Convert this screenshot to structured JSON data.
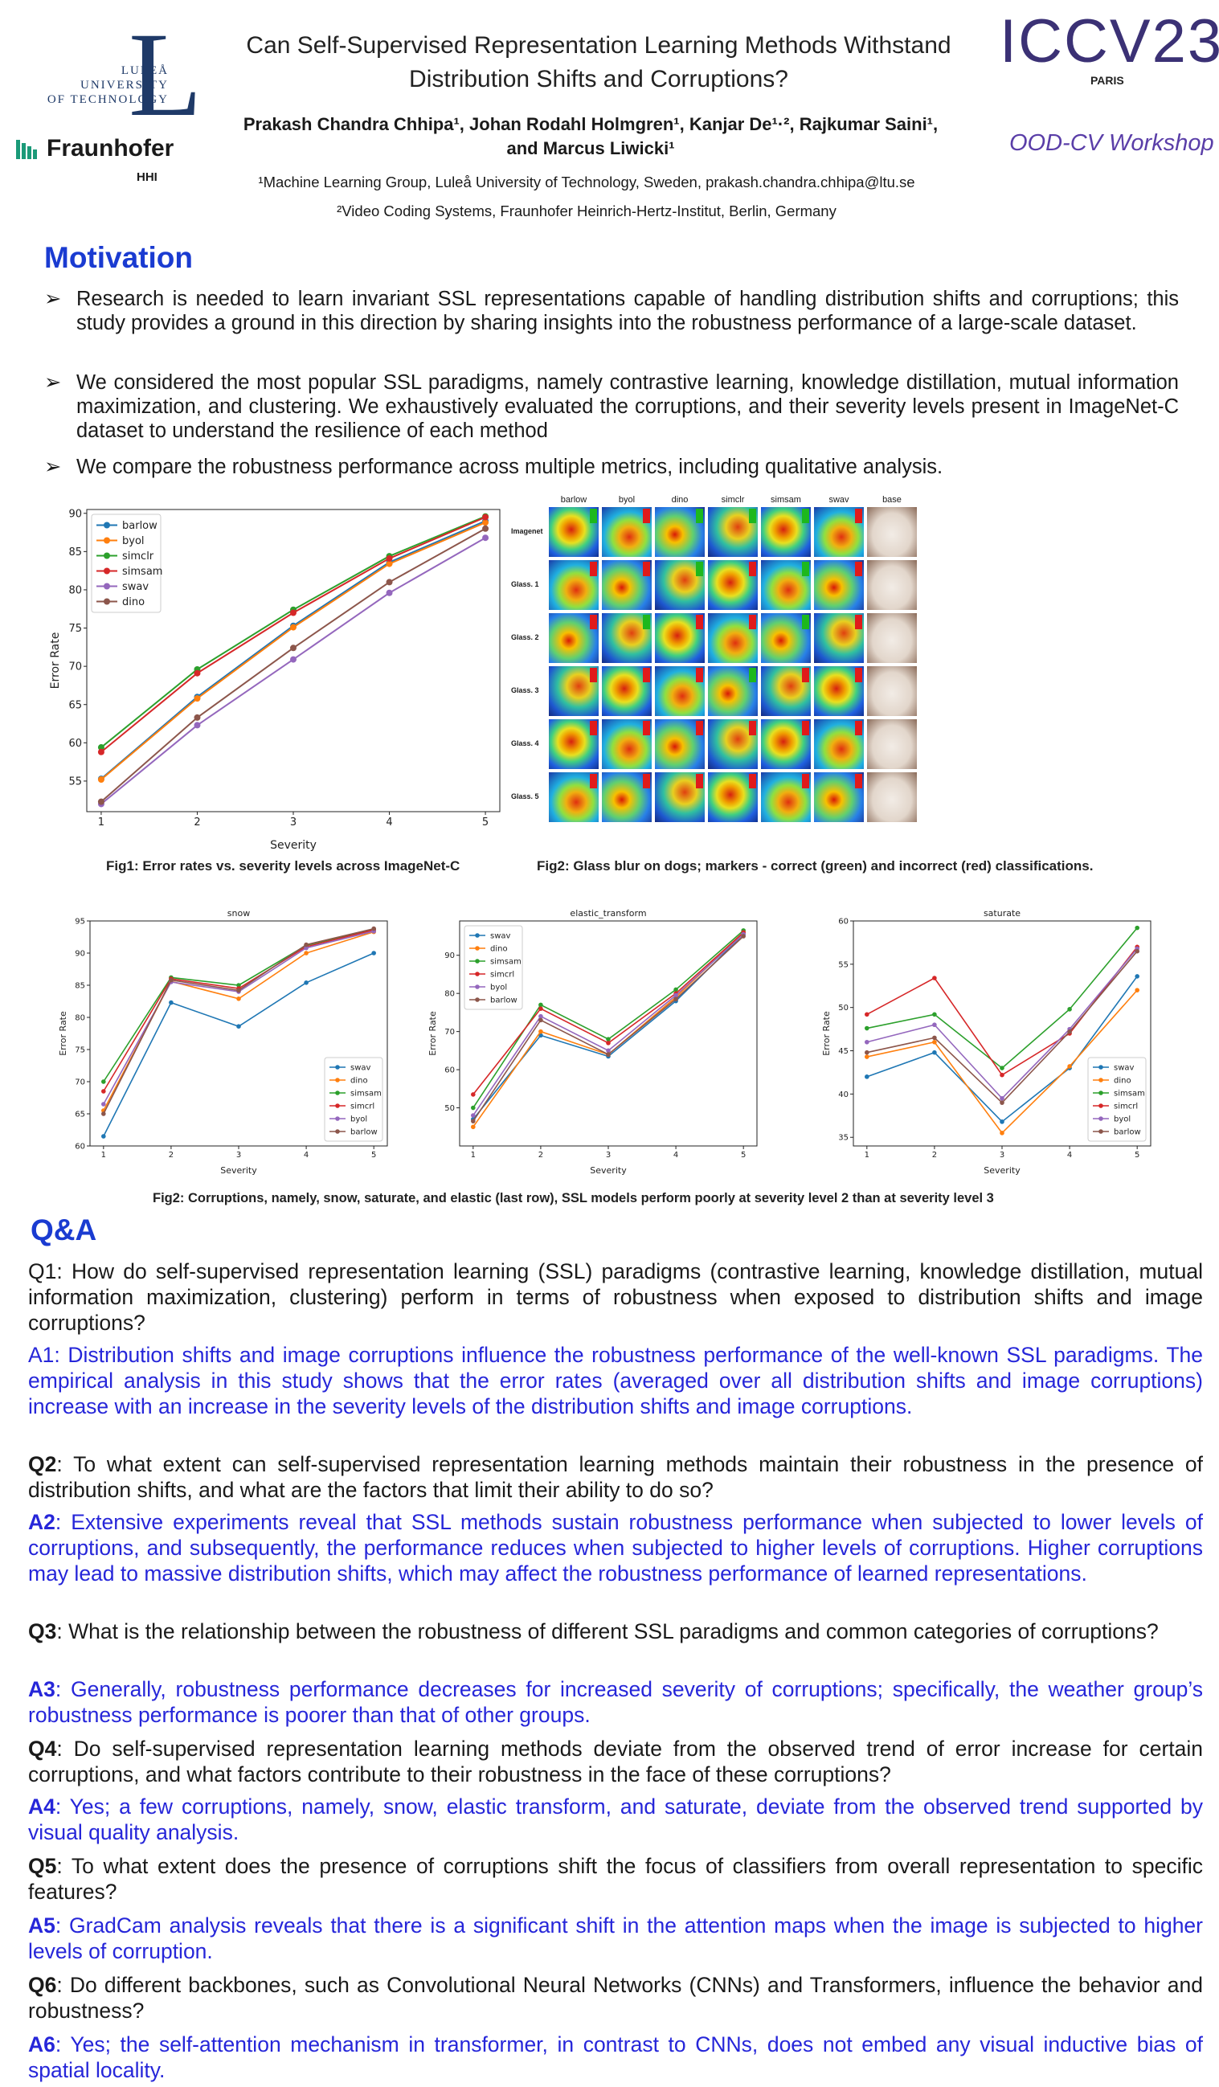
{
  "header": {
    "lulea_line1": "LULEÅ",
    "lulea_line2": "UNIVERSITY",
    "lulea_line3": "OF TECHNOLOGY",
    "lulea_mark": "L",
    "fraunhofer": "Fraunhofer",
    "hhi": "HHI",
    "title_line1": "Can Self-Supervised Representation Learning Methods Withstand",
    "title_line2": "Distribution Shifts and Corruptions?",
    "conference": "ICCV23",
    "conference_city": "PARIS",
    "workshop": "OOD-CV Workshop",
    "authors_line1": "Prakash Chandra Chhipa¹, Johan Rodahl Holmgren¹, Kanjar De¹·², Rajkumar Saini¹,",
    "authors_line2": "and Marcus Liwicki¹",
    "affiliation1": "¹Machine Learning Group, Luleå University of Technology, Sweden, prakash.chandra.chhipa@ltu.se",
    "affiliation2": "²Video Coding Systems, Fraunhofer Heinrich-Hertz-Institut, Berlin, Germany"
  },
  "motivation": {
    "title": "Motivation",
    "arrow": "➢",
    "bullets": [
      "Research is needed to learn invariant SSL representations capable of handling distribution shifts and corruptions; this study provides a ground in this direction by sharing insights into the robustness performance of a large-scale dataset.",
      "We considered the most popular SSL paradigms, namely contrastive learning, knowledge distillation, mutual information maximization, and clustering. We exhaustively evaluated the corruptions, and their severity levels present in ImageNet-C dataset to understand the resilience of each method",
      "We compare the robustness performance across multiple metrics, including qualitative analysis."
    ]
  },
  "colors": {
    "accent_blue": "#1a3bd1",
    "answer_blue": "#2626d9",
    "c_blue": "#1f77b4",
    "c_orange": "#ff7f0e",
    "c_green": "#2ca02c",
    "c_red": "#d62728",
    "c_purple": "#9467bd",
    "c_brown": "#8c564b"
  },
  "chart_data": [
    {
      "type": "line",
      "title": "",
      "xlabel": "Severity",
      "ylabel": "Error Rate",
      "x": [
        1,
        2,
        3,
        4,
        5
      ],
      "xlim": [
        0.85,
        5.15
      ],
      "ylim": [
        51,
        90.5
      ],
      "yticks": [
        55,
        60,
        65,
        70,
        75,
        80,
        85,
        90
      ],
      "legend": "top-left",
      "series": [
        {
          "name": "barlow",
          "color": "#1f77b4",
          "values": [
            55.3,
            66.0,
            75.3,
            83.6,
            89.0
          ]
        },
        {
          "name": "byol",
          "color": "#ff7f0e",
          "values": [
            55.2,
            65.8,
            75.1,
            83.4,
            88.8
          ]
        },
        {
          "name": "simclr",
          "color": "#2ca02c",
          "values": [
            59.4,
            69.6,
            77.4,
            84.4,
            89.6
          ]
        },
        {
          "name": "simsam",
          "color": "#d62728",
          "values": [
            58.8,
            69.1,
            77.0,
            84.1,
            89.5
          ]
        },
        {
          "name": "swav",
          "color": "#9467bd",
          "values": [
            52.0,
            62.3,
            70.9,
            79.6,
            86.8
          ]
        },
        {
          "name": "dino",
          "color": "#8c564b",
          "values": [
            52.3,
            63.3,
            72.4,
            81.0,
            88.0
          ]
        }
      ]
    },
    {
      "type": "line",
      "title": "snow",
      "xlabel": "Severity",
      "ylabel": "Error Rate",
      "x": [
        1,
        2,
        3,
        4,
        5
      ],
      "xlim": [
        0.8,
        5.2
      ],
      "ylim": [
        60,
        95
      ],
      "yticks": [
        60,
        65,
        70,
        75,
        80,
        85,
        90,
        95
      ],
      "legend": "bottom-right",
      "series": [
        {
          "name": "swav",
          "color": "#1f77b4",
          "values": [
            61.5,
            82.3,
            78.6,
            85.4,
            90.0
          ]
        },
        {
          "name": "dino",
          "color": "#ff7f0e",
          "values": [
            65.5,
            85.6,
            82.9,
            90.0,
            93.3
          ]
        },
        {
          "name": "simsam",
          "color": "#2ca02c",
          "values": [
            70.0,
            86.2,
            85.0,
            91.2,
            93.7
          ]
        },
        {
          "name": "simcrl",
          "color": "#d62728",
          "values": [
            68.5,
            86.0,
            84.5,
            91.0,
            93.6
          ]
        },
        {
          "name": "byol",
          "color": "#9467bd",
          "values": [
            66.5,
            85.5,
            84.0,
            90.8,
            93.4
          ]
        },
        {
          "name": "barlow",
          "color": "#8c564b",
          "values": [
            65.0,
            85.8,
            84.2,
            91.3,
            93.8
          ]
        }
      ]
    },
    {
      "type": "line",
      "title": "elastic_transform",
      "xlabel": "Severity",
      "ylabel": "Error Rate",
      "x": [
        1,
        2,
        3,
        4,
        5
      ],
      "xlim": [
        0.8,
        5.2
      ],
      "ylim": [
        40,
        99
      ],
      "yticks": [
        50,
        60,
        70,
        80,
        90
      ],
      "legend": "top-left",
      "series": [
        {
          "name": "swav",
          "color": "#1f77b4",
          "values": [
            47.0,
            69.0,
            63.5,
            78.0,
            95.5
          ]
        },
        {
          "name": "dino",
          "color": "#ff7f0e",
          "values": [
            45.0,
            70.0,
            64.0,
            79.0,
            96.0
          ]
        },
        {
          "name": "simsam",
          "color": "#2ca02c",
          "values": [
            50.0,
            77.0,
            68.0,
            81.0,
            96.5
          ]
        },
        {
          "name": "simcrl",
          "color": "#d62728",
          "values": [
            53.5,
            76.0,
            67.0,
            80.0,
            96.0
          ]
        },
        {
          "name": "byol",
          "color": "#9467bd",
          "values": [
            48.0,
            74.0,
            65.0,
            79.5,
            95.5
          ]
        },
        {
          "name": "barlow",
          "color": "#8c564b",
          "values": [
            46.5,
            73.0,
            64.0,
            78.5,
            95.0
          ]
        }
      ]
    },
    {
      "type": "line",
      "title": "saturate",
      "xlabel": "Severity",
      "ylabel": "Error Rate",
      "x": [
        1,
        2,
        3,
        4,
        5
      ],
      "xlim": [
        0.8,
        5.2
      ],
      "ylim": [
        34,
        60
      ],
      "yticks": [
        35,
        40,
        45,
        50,
        55,
        60
      ],
      "legend": "bottom-right",
      "series": [
        {
          "name": "swav",
          "color": "#1f77b4",
          "values": [
            42.0,
            44.8,
            36.8,
            43.0,
            53.6
          ]
        },
        {
          "name": "dino",
          "color": "#ff7f0e",
          "values": [
            44.3,
            46.0,
            35.5,
            43.2,
            52.0
          ]
        },
        {
          "name": "simsam",
          "color": "#2ca02c",
          "values": [
            47.6,
            49.2,
            43.0,
            49.8,
            59.2
          ]
        },
        {
          "name": "simcrl",
          "color": "#d62728",
          "values": [
            49.2,
            53.4,
            42.2,
            47.0,
            57.0
          ]
        },
        {
          "name": "byol",
          "color": "#9467bd",
          "values": [
            46.0,
            48.0,
            39.5,
            47.5,
            56.8
          ]
        },
        {
          "name": "barlow",
          "color": "#8c564b",
          "values": [
            44.8,
            46.5,
            39.0,
            47.2,
            56.5
          ]
        }
      ]
    }
  ],
  "fig1_caption": "Fig1: Error rates vs. severity levels across ImageNet-C",
  "fig2_caption": "Fig2: Glass blur on dogs; markers - correct (green) and incorrect (red) classifications.",
  "fig3_caption": "Fig2: Corruptions, namely, snow, saturate, and elastic (last row), SSL models perform poorly at severity level 2 than at severity level 3",
  "attention_grid": {
    "columns": [
      "barlow",
      "byol",
      "dino",
      "simclr",
      "simsam",
      "swav",
      "base"
    ],
    "rows": [
      "Imagenet",
      "Glass. 1",
      "Glass. 2",
      "Glass. 3",
      "Glass. 4",
      "Glass. 5"
    ],
    "markers": [
      [
        "green",
        "red",
        "green",
        "green",
        "green",
        "red"
      ],
      [
        "red",
        "red",
        "green",
        "red",
        "green",
        "red"
      ],
      [
        "red",
        "green",
        "red",
        "red",
        "green",
        "red"
      ],
      [
        "red",
        "red",
        "red",
        "green",
        "red",
        "red"
      ],
      [
        "red",
        "red",
        "red",
        "red",
        "red",
        "red"
      ],
      [
        "red",
        "red",
        "red",
        "red",
        "red",
        "red"
      ]
    ]
  },
  "qa": {
    "title": "Q&A",
    "items": [
      {
        "q_label": "Q1",
        "q": ": How do self-supervised representation learning (SSL) paradigms (contrastive learning, knowledge distillation, mutual information maximization, clustering) perform in terms of robustness when exposed to distribution shifts and image corruptions?",
        "a_label": "A1",
        "a": ": Distribution shifts and image corruptions influence the robustness performance of the well-known SSL paradigms. The empirical analysis in this study shows that the error rates (averaged over all distribution shifts and image corruptions) increase with an increase in the severity levels of the distribution shifts and image corruptions."
      },
      {
        "q_label": "Q2",
        "q": ": To what extent can self-supervised representation learning methods maintain their robustness in the presence of distribution shifts, and what are the factors that limit their ability to do so?",
        "a_label": "A2",
        "a": ": Extensive experiments reveal that SSL methods sustain robustness performance when subjected to lower levels of corruptions, and subsequently, the performance reduces when subjected to higher levels of corruptions. Higher corruptions may lead to massive distribution shifts, which may affect the robustness performance of learned representations."
      },
      {
        "q_label": "Q3",
        "q": ":  What is the relationship between the robustness of different SSL paradigms and common categories of corruptions?",
        "a_label": "A3",
        "a": ": Generally, robustness performance decreases for increased severity of corruptions; specifically, the weather group’s robustness performance is poorer than that of other groups."
      },
      {
        "q_label": "Q4",
        "q": ": Do self-supervised representation learning methods deviate from the observed trend of error increase for certain corruptions, and what factors contribute to their robustness in the face of these corruptions?",
        "a_label": "A4",
        "a": ": Yes; a few corruptions, namely, snow, elastic transform, and saturate, deviate from the observed trend supported by visual quality analysis."
      },
      {
        "q_label": "Q5",
        "q": ": To what extent does the presence of corruptions shift the focus of classifiers from overall representation to specific features?",
        "a_label": "A5",
        "a": ": GradCam analysis reveals that there is a significant shift in the attention maps when the image is subjected to higher levels of corruption."
      },
      {
        "q_label": "Q6",
        "q": ": Do different backbones, such as Convolutional Neural Networks (CNNs) and Transformers, influence the behavior and robustness?",
        "a_label": "A6",
        "a": ": Yes; the self-attention mechanism in transformer, in contrast to CNNs, does not embed any visual inductive bias of spatial locality."
      }
    ]
  }
}
